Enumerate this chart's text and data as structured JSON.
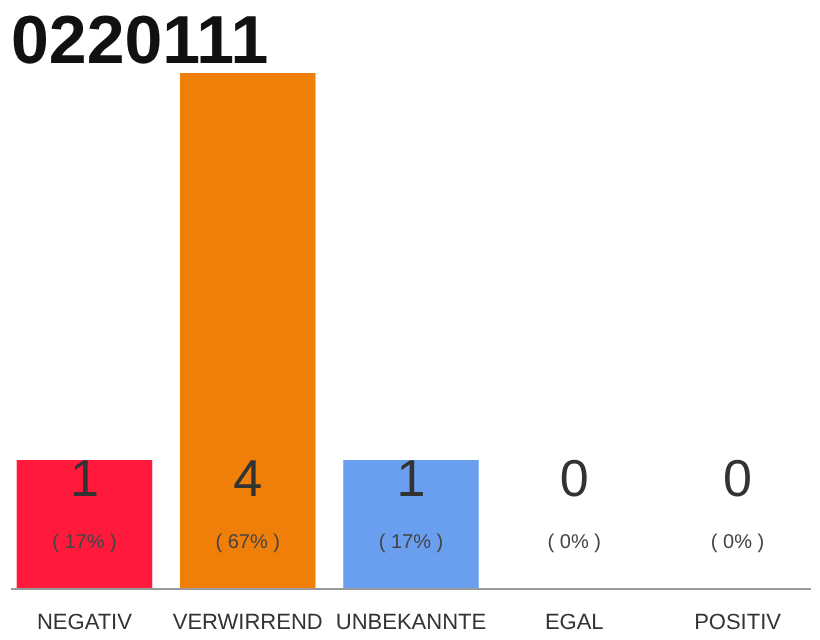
{
  "chart_data": {
    "type": "bar",
    "title": "0220111",
    "categories": [
      "NEGATIV",
      "VERWIRREND",
      "UNBEKANNTE",
      "EGAL",
      "POSITIV"
    ],
    "values": [
      1,
      4,
      1,
      0,
      0
    ],
    "colors": [
      "#ff1a3c",
      "#f07f0a",
      "#6a9ff0",
      "#cccccc",
      "#cccccc"
    ],
    "tick_labels": "x",
    "data_labels": true,
    "annotations": [
      "( 17% )",
      "( 67% )",
      "( 17% )",
      "( 0% )",
      "( 0% )"
    ]
  }
}
